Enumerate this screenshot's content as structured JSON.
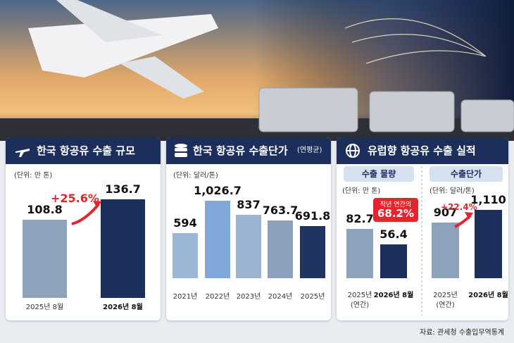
{
  "chart_data": [
    {
      "type": "bar",
      "title": "한국 항공유 수출 규모",
      "unit": "(단위: 만 톤)",
      "categories": [
        "2025년 8월",
        "2026년 8월"
      ],
      "values": [
        108.8,
        136.7
      ],
      "colors": [
        "#8fa2bb",
        "#1c2e5b"
      ],
      "annotations": [
        "+25.6%"
      ]
    },
    {
      "type": "bar",
      "title": "한국 항공유 수출단가",
      "subtitle": "(연평균)",
      "unit": "(단위: 달러/톤)",
      "categories": [
        "2021년",
        "2022년",
        "2023년",
        "2024년",
        "2025년"
      ],
      "values": [
        594,
        1026.7,
        837,
        763.7,
        691.8
      ],
      "value_labels": [
        "594",
        "1,026.7",
        "837",
        "763.7",
        "691.8"
      ],
      "colors": [
        "#9cb7d6",
        "#7fa8d8",
        "#9bb4d2",
        "#8ca1bc",
        "#1f3461"
      ]
    },
    {
      "type": "bar",
      "panel_title": "유럽향 항공유 수출 실적",
      "title": "수출 물량",
      "unit": "(단위: 만 톤)",
      "categories": [
        "2025년\n(연간)",
        "2026년 8월"
      ],
      "values": [
        82.7,
        56.4
      ],
      "colors": [
        "#8fa2bb",
        "#1c2e5b"
      ],
      "annotations": [
        "작년 연간의",
        "68.2%"
      ]
    },
    {
      "type": "bar",
      "title": "수출단가",
      "unit": "(단위: 달러/톤)",
      "categories": [
        "2025년\n(연간)",
        "2026년 8월"
      ],
      "values": [
        907,
        1110
      ],
      "value_labels": [
        "907",
        "1,110"
      ],
      "colors": [
        "#8fa2bb",
        "#1c2e5b"
      ],
      "annotations": [
        "+22.4%"
      ]
    }
  ],
  "source": "자료: 관세청 수출입무역통계"
}
